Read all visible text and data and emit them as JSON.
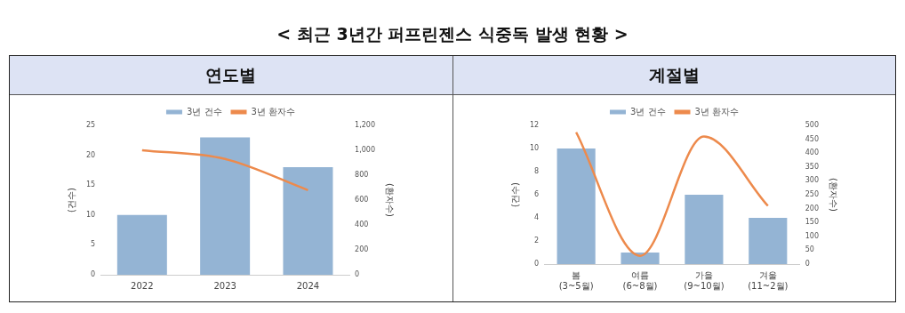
{
  "chart_data": [
    {
      "type": "bar",
      "title": "연도별",
      "annotations": [
        "< 최근 3년간 퍼프린젠스 식중독 발생 현황 >"
      ],
      "categories": [
        "2022",
        "2023",
        "2024"
      ],
      "series": [
        {
          "name": "3년 건수",
          "type": "bar",
          "color": "#94b4d4",
          "values": [
            10,
            23,
            18
          ]
        },
        {
          "name": "3년 환자수",
          "type": "line",
          "axis": "y2",
          "color": "#ed8a4c",
          "values": [
            1000,
            930,
            680
          ]
        }
      ],
      "ylabel": "(건수)",
      "y2label": "(환자수)",
      "ylim": [
        0,
        25
      ],
      "yticks": [
        0,
        5,
        10,
        15,
        20,
        25
      ],
      "y2lim": [
        0,
        1200
      ],
      "y2ticks": [
        0,
        200,
        400,
        600,
        800,
        {
          "value": 1000,
          "label": "1,000"
        },
        {
          "value": 1200,
          "label": "1,200"
        }
      ],
      "grid": false,
      "legend": "top",
      "marker": "none"
    },
    {
      "type": "bar",
      "title": "계절별",
      "categories": [
        "봄 (3~5월)",
        "여름 (6~8월)",
        "가을 (9~10월)",
        "겨울 (11~2월)"
      ],
      "series": [
        {
          "name": "3년 건수",
          "type": "bar",
          "color": "#94b4d4",
          "values": [
            10,
            1,
            6,
            4
          ]
        },
        {
          "name": "3년 환자수",
          "type": "line",
          "axis": "y2",
          "color": "#ed8a4c",
          "values": [
            475,
            30,
            460,
            210
          ]
        }
      ],
      "ylabel": "(건수)",
      "y2label": "(환자수)",
      "ylim": [
        0,
        12
      ],
      "yticks": [
        0,
        2,
        4,
        6,
        8,
        10,
        12
      ],
      "y2lim": [
        0,
        500
      ],
      "y2ticks": [
        0,
        50,
        100,
        150,
        200,
        250,
        300,
        350,
        400,
        450,
        500
      ],
      "grid": false,
      "legend": "top",
      "marker": "none"
    }
  ]
}
